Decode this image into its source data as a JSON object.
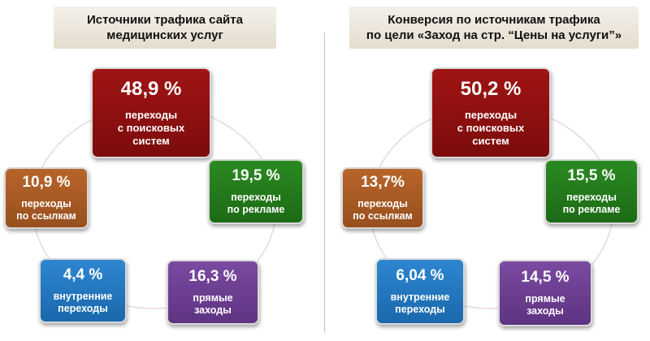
{
  "colors": {
    "search": "#8b1010",
    "ads": "#24781c",
    "direct": "#6b3e8f",
    "internal": "#2377c0",
    "links": "#a85a24",
    "title_bg": "#ebe5d9"
  },
  "left": {
    "title_line1": "Источники трафика сайта",
    "title_line2": "медицинских услуг",
    "search": {
      "value": "48,9 %",
      "label_lines": [
        "переходы",
        "с поисковых",
        "систем"
      ]
    },
    "ads": {
      "value": "19,5 %",
      "label_lines": [
        "переходы",
        "по рекламе"
      ]
    },
    "direct": {
      "value": "16,3 %",
      "label_lines": [
        "прямые",
        "заходы"
      ]
    },
    "internal": {
      "value": "4,4 %",
      "label_lines": [
        "внутренние",
        "переходы"
      ]
    },
    "links": {
      "value": "10,9 %",
      "label_lines": [
        "переходы",
        "по ссылкам"
      ]
    }
  },
  "right": {
    "title_line1": "Конверсия по источникам трафика",
    "title_line2": "по цели «Заход на стр. “Цены на услуги”»",
    "search": {
      "value": "50,2 %",
      "label_lines": [
        "переходы",
        "с поисковых",
        "систем"
      ]
    },
    "ads": {
      "value": "15,5 %",
      "label_lines": [
        "переходы",
        "по рекламе"
      ]
    },
    "direct": {
      "value": "14,5 %",
      "label_lines": [
        "прямые",
        "заходы"
      ]
    },
    "internal": {
      "value": "6,04 %",
      "label_lines": [
        "внутренние",
        "переходы"
      ]
    },
    "links": {
      "value": "13,7%",
      "label_lines": [
        "переходы",
        "по ссылкам"
      ]
    }
  }
}
